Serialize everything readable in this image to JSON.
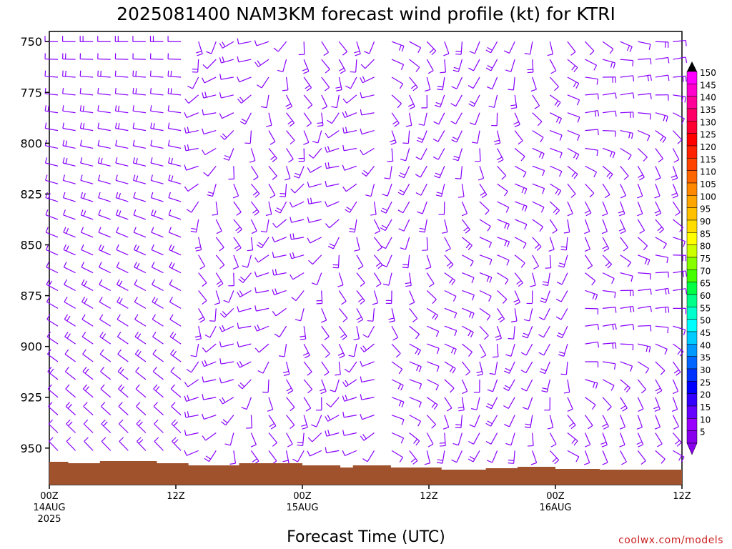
{
  "chart_data": {
    "type": "wind-barb-time-height",
    "title": "2025081400 NAM3KM forecast wind profile (kt) for KTRI",
    "xlabel": "Forecast Time (UTC)",
    "ylabel": "",
    "credit": "coolwx.com/models",
    "y_ticks": [
      "750",
      "775",
      "800",
      "825",
      "850",
      "875",
      "900",
      "925",
      "950"
    ],
    "x_ticks": [
      {
        "hour": 0,
        "lines": [
          "00Z",
          "14AUG",
          "2025"
        ]
      },
      {
        "hour": 12,
        "lines": [
          "12Z"
        ]
      },
      {
        "hour": 24,
        "lines": [
          "00Z",
          "15AUG"
        ]
      },
      {
        "hour": 36,
        "lines": [
          "12Z"
        ]
      },
      {
        "hour": 48,
        "lines": [
          "00Z",
          "16AUG"
        ]
      },
      {
        "hour": 60,
        "lines": [
          "12Z"
        ]
      }
    ],
    "colorbar_labels": [
      "150",
      "145",
      "140",
      "135",
      "130",
      "125",
      "120",
      "115",
      "110",
      "105",
      "100",
      "95",
      "90",
      "85",
      "80",
      "75",
      "70",
      "65",
      "60",
      "55",
      "50",
      "45",
      "40",
      "35",
      "30",
      "25",
      "20",
      "15",
      "10",
      "5"
    ],
    "colorbar_colors": [
      "#ff00ff",
      "#ff00cc",
      "#ff0099",
      "#ff0066",
      "#ff0033",
      "#ff0000",
      "#ff2200",
      "#ff4400",
      "#ff6600",
      "#ff8800",
      "#ffa500",
      "#ffc000",
      "#ffdd00",
      "#ffff00",
      "#ccff00",
      "#88ff00",
      "#44ff00",
      "#00ff44",
      "#00ff88",
      "#00ffcc",
      "#00ffff",
      "#00ccff",
      "#0099ff",
      "#0066ff",
      "#0033ff",
      "#0000ff",
      "#3300ff",
      "#6600ff",
      "#9900ff",
      "#8800ee"
    ],
    "barb_color": "#8800ff",
    "terrain_color": "#a0522d",
    "surface_pressure_hpa": [
      960,
      960,
      960,
      960,
      960,
      960,
      960,
      960,
      960,
      960,
      960,
      960,
      960,
      960,
      960,
      960,
      960,
      960,
      960,
      960,
      960,
      960,
      960,
      960,
      960,
      960,
      960,
      960,
      960,
      960,
      960,
      960,
      960,
      960,
      960,
      960,
      960,
      960,
      960,
      960,
      960,
      960,
      960,
      960,
      960,
      960,
      960,
      960,
      960,
      960,
      960,
      960,
      960,
      960,
      960,
      960,
      960,
      960,
      960,
      960,
      960
    ],
    "barbs": {
      "time_step_hours": 2,
      "pressure_levels_hpa": [
        750,
        775,
        800,
        825,
        850,
        875,
        900,
        925,
        950
      ],
      "note": "wind direction (deg) and speed (kt) approximations by time column"
    }
  }
}
